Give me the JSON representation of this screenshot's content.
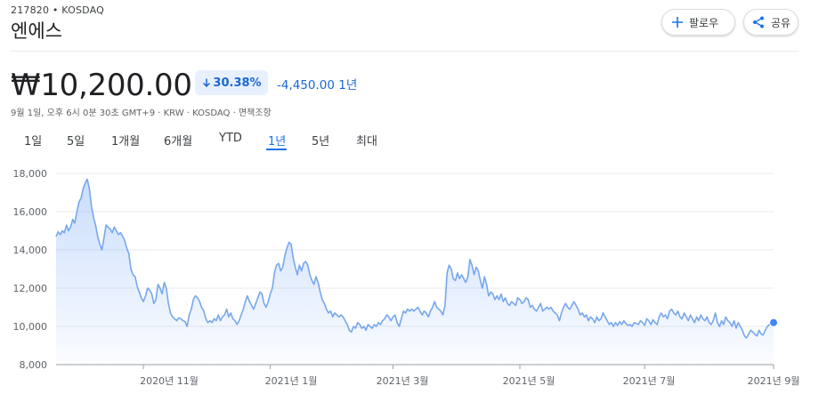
{
  "header": {
    "ticker": "217820 • KOSDAQ",
    "company": "엔에스",
    "follow_label": "팔로우",
    "share_label": "공유"
  },
  "quote": {
    "price": "₩10,200.00",
    "change_pct": "30.38%",
    "change_abs": "-4,450.00 1년",
    "meta": "9월 1일, 오후 6시 0분 30초 GMT+9 · KRW · KOSDAQ · 면책조항"
  },
  "tabs": [
    {
      "label": "1일"
    },
    {
      "label": "5일"
    },
    {
      "label": "1개월"
    },
    {
      "label": "6개월"
    },
    {
      "label": "YTD"
    },
    {
      "label": "1년"
    },
    {
      "label": "5년"
    },
    {
      "label": "최대"
    }
  ],
  "active_tab": "1년",
  "colors": {
    "accent": "#1a73e8",
    "line": "#77a7ec",
    "negative": "#1967d2"
  },
  "chart_data": {
    "type": "area",
    "y_ticks": [
      "18,000",
      "16,000",
      "14,000",
      "12,000",
      "10,000",
      "8,000"
    ],
    "ylim": [
      8000,
      18000
    ],
    "x_ticks": [
      "2020년 11월",
      "2021년 1월",
      "2021년 3월",
      "2021년 5월",
      "2021년 7월",
      "2021년 9월"
    ],
    "x_tick_positions": [
      42,
      103,
      162,
      223,
      283,
      345
    ],
    "x_range": [
      0,
      345
    ],
    "grid": true,
    "points": [
      [
        0,
        14700
      ],
      [
        1,
        14950
      ],
      [
        2,
        14800
      ],
      [
        3,
        15000
      ],
      [
        4,
        14900
      ],
      [
        5,
        15300
      ],
      [
        6,
        15000
      ],
      [
        7,
        15200
      ],
      [
        8,
        15600
      ],
      [
        9,
        15400
      ],
      [
        10,
        16000
      ],
      [
        11,
        16500
      ],
      [
        12,
        16700
      ],
      [
        13,
        17200
      ],
      [
        14,
        17500
      ],
      [
        15,
        17700
      ],
      [
        16,
        17200
      ],
      [
        17,
        16300
      ],
      [
        18,
        15700
      ],
      [
        19,
        15300
      ],
      [
        20,
        14700
      ],
      [
        21,
        14300
      ],
      [
        22,
        14000
      ],
      [
        23,
        14600
      ],
      [
        24,
        15300
      ],
      [
        25,
        15200
      ],
      [
        26,
        15100
      ],
      [
        27,
        14900
      ],
      [
        28,
        15200
      ],
      [
        29,
        15000
      ],
      [
        30,
        14800
      ],
      [
        31,
        14900
      ],
      [
        32,
        14700
      ],
      [
        33,
        14500
      ],
      [
        34,
        14100
      ],
      [
        35,
        13800
      ],
      [
        36,
        13000
      ],
      [
        37,
        12700
      ],
      [
        38,
        12600
      ],
      [
        39,
        12100
      ],
      [
        40,
        11800
      ],
      [
        41,
        11500
      ],
      [
        42,
        11300
      ],
      [
        43,
        11600
      ],
      [
        44,
        12000
      ],
      [
        45,
        11900
      ],
      [
        46,
        11700
      ],
      [
        47,
        11200
      ],
      [
        48,
        11400
      ],
      [
        49,
        12200
      ],
      [
        50,
        12000
      ],
      [
        51,
        11700
      ],
      [
        52,
        12300
      ],
      [
        53,
        12000
      ],
      [
        54,
        11200
      ],
      [
        55,
        10700
      ],
      [
        56,
        10500
      ],
      [
        57,
        10400
      ],
      [
        58,
        10300
      ],
      [
        59,
        10450
      ],
      [
        60,
        10400
      ],
      [
        61,
        10300
      ],
      [
        62,
        10250
      ],
      [
        63,
        10000
      ],
      [
        64,
        10600
      ],
      [
        65,
        10900
      ],
      [
        66,
        11400
      ],
      [
        67,
        11600
      ],
      [
        68,
        11500
      ],
      [
        69,
        11300
      ],
      [
        70,
        11000
      ],
      [
        71,
        10800
      ],
      [
        72,
        10400
      ],
      [
        73,
        10200
      ],
      [
        74,
        10300
      ],
      [
        75,
        10200
      ],
      [
        76,
        10400
      ],
      [
        77,
        10300
      ],
      [
        78,
        10600
      ],
      [
        79,
        10300
      ],
      [
        80,
        10500
      ],
      [
        81,
        10600
      ],
      [
        82,
        10900
      ],
      [
        83,
        10500
      ],
      [
        84,
        10700
      ],
      [
        85,
        10400
      ],
      [
        86,
        10300
      ],
      [
        87,
        10100
      ],
      [
        88,
        10300
      ],
      [
        89,
        10600
      ],
      [
        90,
        10900
      ],
      [
        91,
        11300
      ],
      [
        92,
        11600
      ],
      [
        93,
        11300
      ],
      [
        94,
        11100
      ],
      [
        95,
        10900
      ],
      [
        96,
        11200
      ],
      [
        97,
        11500
      ],
      [
        98,
        11800
      ],
      [
        99,
        11700
      ],
      [
        100,
        11200
      ],
      [
        101,
        11000
      ],
      [
        102,
        11300
      ],
      [
        103,
        11700
      ],
      [
        104,
        12000
      ],
      [
        105,
        12800
      ],
      [
        106,
        13200
      ],
      [
        107,
        13300
      ],
      [
        108,
        12900
      ],
      [
        109,
        13100
      ],
      [
        110,
        13700
      ],
      [
        111,
        14100
      ],
      [
        112,
        14400
      ],
      [
        113,
        14300
      ],
      [
        114,
        13600
      ],
      [
        115,
        13100
      ],
      [
        116,
        12700
      ],
      [
        117,
        13200
      ],
      [
        118,
        12900
      ],
      [
        119,
        13300
      ],
      [
        120,
        13400
      ],
      [
        121,
        13200
      ],
      [
        122,
        12700
      ],
      [
        123,
        12400
      ],
      [
        124,
        12200
      ],
      [
        125,
        12600
      ],
      [
        126,
        12300
      ],
      [
        127,
        11800
      ],
      [
        128,
        11400
      ],
      [
        129,
        11200
      ],
      [
        130,
        10900
      ],
      [
        131,
        10700
      ],
      [
        132,
        10800
      ],
      [
        133,
        10500
      ],
      [
        134,
        10700
      ],
      [
        135,
        10600
      ],
      [
        136,
        10500
      ],
      [
        137,
        10600
      ],
      [
        138,
        10500
      ],
      [
        139,
        10300
      ],
      [
        140,
        10100
      ],
      [
        141,
        9800
      ],
      [
        142,
        9700
      ],
      [
        143,
        10000
      ],
      [
        144,
        9900
      ],
      [
        145,
        10200
      ],
      [
        146,
        10100
      ],
      [
        147,
        9900
      ],
      [
        148,
        10000
      ],
      [
        149,
        9800
      ],
      [
        150,
        10100
      ],
      [
        151,
        10000
      ],
      [
        152,
        9900
      ],
      [
        153,
        10100
      ],
      [
        154,
        10000
      ],
      [
        155,
        10200
      ],
      [
        156,
        10100
      ],
      [
        157,
        10300
      ],
      [
        158,
        10400
      ],
      [
        159,
        10600
      ],
      [
        160,
        10500
      ],
      [
        161,
        10300
      ],
      [
        162,
        10500
      ],
      [
        163,
        10600
      ],
      [
        164,
        10200
      ],
      [
        165,
        10000
      ],
      [
        166,
        10400
      ],
      [
        167,
        10800
      ],
      [
        168,
        10700
      ],
      [
        169,
        10900
      ],
      [
        170,
        10800
      ],
      [
        171,
        10900
      ],
      [
        172,
        10800
      ],
      [
        173,
        10900
      ],
      [
        174,
        11000
      ],
      [
        175,
        10800
      ],
      [
        176,
        10600
      ],
      [
        177,
        10800
      ],
      [
        178,
        10700
      ],
      [
        179,
        10500
      ],
      [
        180,
        10800
      ],
      [
        181,
        11000
      ],
      [
        182,
        11300
      ],
      [
        183,
        11000
      ],
      [
        184,
        10900
      ],
      [
        185,
        10800
      ],
      [
        186,
        10600
      ],
      [
        187,
        11100
      ],
      [
        188,
        12800
      ],
      [
        189,
        13200
      ],
      [
        190,
        13000
      ],
      [
        191,
        12500
      ],
      [
        192,
        12400
      ],
      [
        193,
        12800
      ],
      [
        194,
        12500
      ],
      [
        195,
        12700
      ],
      [
        196,
        12500
      ],
      [
        197,
        12300
      ],
      [
        198,
        12600
      ],
      [
        199,
        13500
      ],
      [
        200,
        13200
      ],
      [
        201,
        12700
      ],
      [
        202,
        13100
      ],
      [
        203,
        12900
      ],
      [
        204,
        12400
      ],
      [
        205,
        12000
      ],
      [
        206,
        12600
      ],
      [
        207,
        12200
      ],
      [
        208,
        11600
      ],
      [
        209,
        11800
      ],
      [
        210,
        11700
      ],
      [
        211,
        11400
      ],
      [
        212,
        11600
      ],
      [
        213,
        11400
      ],
      [
        214,
        11700
      ],
      [
        215,
        11300
      ],
      [
        216,
        11500
      ],
      [
        217,
        11200
      ],
      [
        218,
        11100
      ],
      [
        219,
        11300
      ],
      [
        220,
        11200
      ],
      [
        221,
        11100
      ],
      [
        222,
        11500
      ],
      [
        223,
        11400
      ],
      [
        224,
        11200
      ],
      [
        225,
        11300
      ],
      [
        226,
        11500
      ],
      [
        227,
        11400
      ],
      [
        228,
        11000
      ],
      [
        229,
        11100
      ],
      [
        230,
        10900
      ],
      [
        231,
        10800
      ],
      [
        232,
        11000
      ],
      [
        233,
        11200
      ],
      [
        234,
        10800
      ],
      [
        235,
        10900
      ],
      [
        236,
        11000
      ],
      [
        237,
        10900
      ],
      [
        238,
        11000
      ],
      [
        239,
        10800
      ],
      [
        240,
        10700
      ],
      [
        241,
        10600
      ],
      [
        242,
        10300
      ],
      [
        243,
        10700
      ],
      [
        244,
        11000
      ],
      [
        245,
        11200
      ],
      [
        246,
        11000
      ],
      [
        247,
        10900
      ],
      [
        248,
        11100
      ],
      [
        249,
        11300
      ],
      [
        250,
        11100
      ],
      [
        251,
        10900
      ],
      [
        252,
        10600
      ],
      [
        253,
        10700
      ],
      [
        254,
        10500
      ],
      [
        255,
        10600
      ],
      [
        256,
        10300
      ],
      [
        257,
        10500
      ],
      [
        258,
        10400
      ],
      [
        259,
        10200
      ],
      [
        260,
        10500
      ],
      [
        261,
        10300
      ],
      [
        262,
        10400
      ],
      [
        263,
        10700
      ],
      [
        264,
        10500
      ],
      [
        265,
        10300
      ],
      [
        266,
        10100
      ],
      [
        267,
        10200
      ],
      [
        268,
        10000
      ],
      [
        269,
        10200
      ],
      [
        270,
        10050
      ],
      [
        271,
        10250
      ],
      [
        272,
        10100
      ],
      [
        273,
        10300
      ],
      [
        274,
        10150
      ],
      [
        275,
        10050
      ],
      [
        276,
        10100
      ],
      [
        277,
        10000
      ],
      [
        278,
        10200
      ],
      [
        279,
        10150
      ],
      [
        280,
        10100
      ],
      [
        281,
        10300
      ],
      [
        282,
        10200
      ],
      [
        283,
        10050
      ],
      [
        284,
        10400
      ],
      [
        285,
        10300
      ],
      [
        286,
        10100
      ],
      [
        287,
        10350
      ],
      [
        288,
        10200
      ],
      [
        289,
        10100
      ],
      [
        290,
        10500
      ],
      [
        291,
        10700
      ],
      [
        292,
        10500
      ],
      [
        293,
        10600
      ],
      [
        294,
        10400
      ],
      [
        295,
        10800
      ],
      [
        296,
        10900
      ],
      [
        297,
        10700
      ],
      [
        298,
        10600
      ],
      [
        299,
        10800
      ],
      [
        300,
        10500
      ],
      [
        301,
        10400
      ],
      [
        302,
        10700
      ],
      [
        303,
        10500
      ],
      [
        304,
        10300
      ],
      [
        305,
        10600
      ],
      [
        306,
        10400
      ],
      [
        307,
        10200
      ],
      [
        308,
        10500
      ],
      [
        309,
        10300
      ],
      [
        310,
        10600
      ],
      [
        311,
        10400
      ],
      [
        312,
        10300
      ],
      [
        313,
        10500
      ],
      [
        314,
        10200
      ],
      [
        315,
        10100
      ],
      [
        316,
        10300
      ],
      [
        317,
        10700
      ],
      [
        318,
        10200
      ],
      [
        319,
        10000
      ],
      [
        320,
        10300
      ],
      [
        321,
        10100
      ],
      [
        322,
        10500
      ],
      [
        323,
        10300
      ],
      [
        324,
        10200
      ],
      [
        325,
        10000
      ],
      [
        326,
        10300
      ],
      [
        327,
        9900
      ],
      [
        328,
        10200
      ],
      [
        329,
        10000
      ],
      [
        330,
        9800
      ],
      [
        331,
        9500
      ],
      [
        332,
        9400
      ],
      [
        333,
        9600
      ],
      [
        334,
        9800
      ],
      [
        335,
        9700
      ],
      [
        336,
        9600
      ],
      [
        337,
        9500
      ],
      [
        338,
        9800
      ],
      [
        339,
        9600
      ],
      [
        340,
        9550
      ],
      [
        341,
        9800
      ],
      [
        342,
        10000
      ],
      [
        343,
        10100
      ],
      [
        344,
        10200
      ],
      [
        345,
        10200
      ]
    ]
  }
}
